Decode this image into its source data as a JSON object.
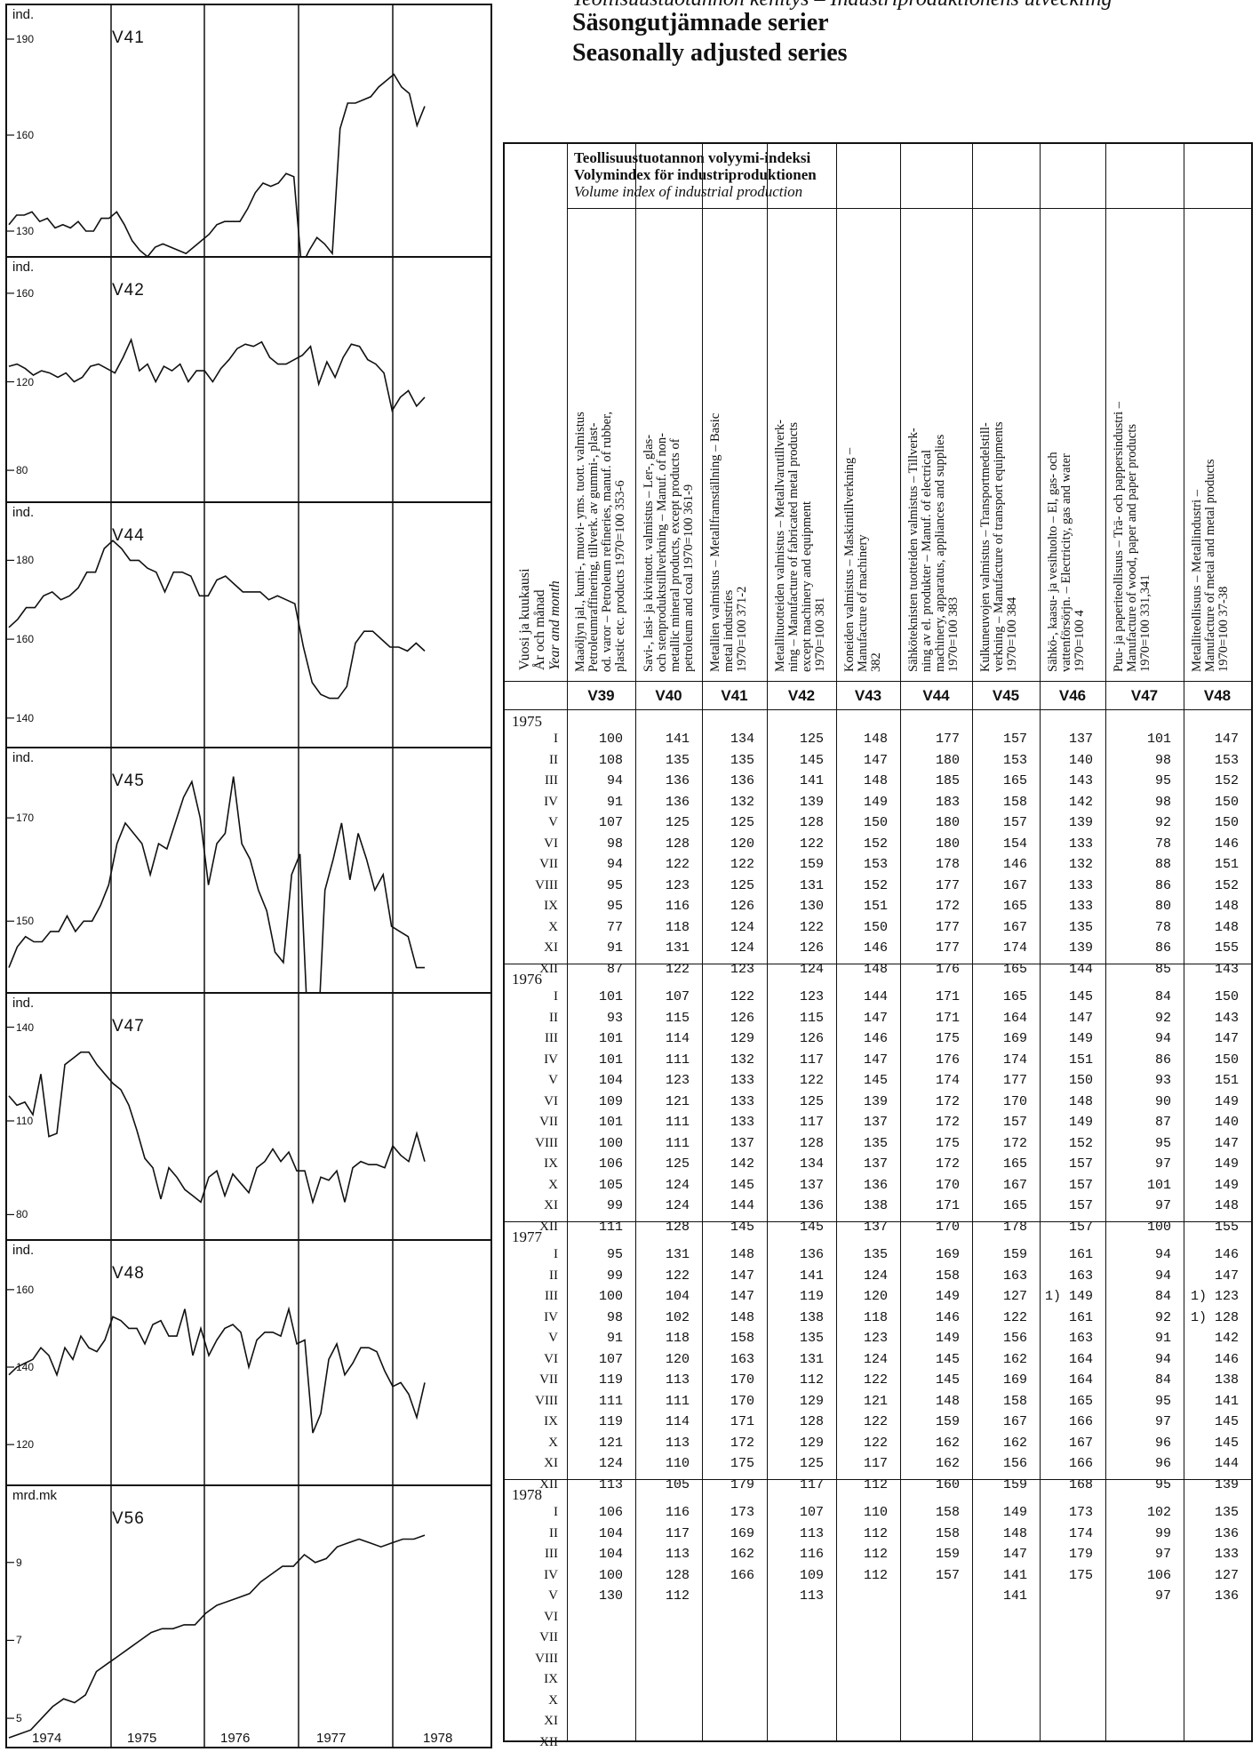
{
  "header": {
    "line1": "Teollisuustuotannon kehitys – Industriproduktionens utveckling",
    "line2": "Säsongutjämnade serier",
    "line3": "Seasonally adjusted series"
  },
  "charts": [
    {
      "id": "V41",
      "unit": "ind.",
      "ticks": [
        "190",
        "160",
        "130"
      ],
      "yrange": [
        125,
        195
      ],
      "values": [
        132,
        135,
        135,
        136,
        133,
        134,
        131,
        132,
        131,
        133,
        130,
        130,
        134,
        134,
        136,
        132,
        127,
        124,
        122,
        125,
        126,
        125,
        124,
        123,
        125,
        127,
        129,
        132,
        133,
        133,
        133,
        137,
        142,
        145,
        144,
        145,
        148,
        147,
        119,
        124,
        128,
        126,
        123,
        162,
        170,
        170,
        171,
        172,
        175,
        177,
        179,
        175,
        173,
        163,
        169
      ]
    },
    {
      "id": "V42",
      "unit": "ind.",
      "ticks": [
        "160",
        "120",
        "80"
      ],
      "yrange": [
        70,
        168
      ],
      "values": [
        127,
        128,
        126,
        123,
        125,
        124,
        122,
        124,
        120,
        122,
        127,
        128,
        126,
        124,
        131,
        139,
        125,
        128,
        120,
        127,
        125,
        128,
        120,
        125,
        125,
        120,
        126,
        130,
        135,
        137,
        136,
        138,
        131,
        128,
        128,
        130,
        132,
        136,
        119,
        129,
        122,
        131,
        137,
        136,
        130,
        128,
        124,
        107,
        113,
        116,
        109,
        113
      ]
    },
    {
      "id": "V44",
      "unit": "ind.",
      "ticks": [
        "180",
        "160",
        "140"
      ],
      "yrange": [
        135,
        190
      ],
      "values": [
        163,
        165,
        168,
        168,
        171,
        172,
        170,
        171,
        173,
        177,
        177,
        183,
        185,
        183,
        180,
        180,
        178,
        177,
        172,
        177,
        177,
        176,
        171,
        171,
        175,
        176,
        174,
        172,
        172,
        172,
        170,
        171,
        170,
        169,
        158,
        149,
        146,
        145,
        145,
        148,
        159,
        162,
        162,
        160,
        158,
        158,
        157,
        159,
        157
      ]
    },
    {
      "id": "V45",
      "unit": "ind.",
      "ticks": [
        "170",
        "150"
      ],
      "yrange": [
        138,
        180
      ],
      "values": [
        141,
        145,
        147,
        146,
        146,
        148,
        148,
        151,
        148,
        150,
        150,
        153,
        157,
        165,
        169,
        167,
        165,
        159,
        165,
        164,
        169,
        174,
        177,
        170,
        157,
        165,
        167,
        178,
        165,
        162,
        156,
        152,
        144,
        142,
        159,
        163,
        127,
        122,
        156,
        162,
        169,
        158,
        167,
        162,
        156,
        159,
        149,
        148,
        147,
        141,
        141
      ]
    },
    {
      "id": "V47",
      "unit": "ind.",
      "ticks": [
        "140",
        "110",
        "80"
      ],
      "yrange": [
        75,
        145
      ],
      "values": [
        118,
        115,
        116,
        112,
        125,
        105,
        106,
        128,
        130,
        132,
        132,
        128,
        125,
        122,
        120,
        115,
        107,
        98,
        95,
        85,
        95,
        92,
        88,
        86,
        84,
        92,
        94,
        86,
        93,
        90,
        87,
        95,
        97,
        101,
        97,
        100,
        94,
        94,
        84,
        92,
        91,
        94,
        84,
        95,
        97,
        96,
        96,
        95,
        102,
        99,
        97,
        106,
        97
      ]
    },
    {
      "id": "V48",
      "unit": "ind.",
      "ticks": [
        "160",
        "140",
        "120"
      ],
      "yrange": [
        112,
        168
      ],
      "values": [
        138,
        140,
        141,
        142,
        145,
        143,
        138,
        145,
        142,
        148,
        145,
        144,
        147,
        153,
        152,
        150,
        150,
        146,
        151,
        152,
        148,
        148,
        155,
        143,
        150,
        143,
        147,
        150,
        151,
        149,
        140,
        147,
        149,
        149,
        148,
        155,
        146,
        147,
        123,
        128,
        142,
        146,
        138,
        141,
        145,
        145,
        144,
        139,
        135,
        136,
        133,
        127,
        136
      ]
    },
    {
      "id": "V56",
      "unit": "mrd.mk",
      "ticks": [
        "9",
        "7",
        "5"
      ],
      "yrange": [
        4.5,
        10.5
      ],
      "values": [
        4.5,
        4.6,
        4.7,
        5.0,
        5.3,
        5.5,
        5.4,
        5.6,
        6.2,
        6.4,
        6.6,
        6.8,
        7.0,
        7.2,
        7.3,
        7.3,
        7.4,
        7.4,
        7.7,
        7.9,
        8.0,
        8.1,
        8.2,
        8.5,
        8.7,
        8.9,
        8.9,
        9.2,
        9.0,
        9.1,
        9.4,
        9.5,
        9.6,
        9.5,
        9.4,
        9.5,
        9.6,
        9.6,
        9.7
      ]
    }
  ],
  "years_axis": [
    "1974",
    "1975",
    "1976",
    "1977",
    "1978"
  ],
  "table": {
    "index_title": [
      "Teollisuustuotannon volyymi-indeksi",
      "Volymindex för industriproduktionen",
      "Volume index of industrial production"
    ],
    "row_head": [
      "Vuosi ja kuukausi",
      "År och månad",
      "Year and month"
    ],
    "columns": [
      {
        "code": "V39",
        "lines": [
          "Maaöljyn jal., kumi-, muovi- yms. tuott. valmistus",
          "Petroleumraffinering, tillverk. av gummi-, plast-",
          "od. varor – Petroleum refineries, manuf. of rubber,",
          "plastic etc. products 1970=100 353-6"
        ]
      },
      {
        "code": "V40",
        "lines": [
          "Savi-, lasi- ja kivituott. valmistus – Ler-, glas-",
          "och stenproduktstillverkning – Manuf. of non-",
          "metallic mineral products, except products of",
          "petroleum and coal 1970=100 361-9"
        ]
      },
      {
        "code": "V41",
        "lines": [
          "Metallien valmistus – Metallframställning – Basic",
          "metal industries",
          "1970=100 371-2"
        ]
      },
      {
        "code": "V42",
        "lines": [
          "Metallituotteiden valmistus – Metallvarutillverk-",
          "ning – Manufacture of fabricated metal products",
          "except machinery and equipment",
          "1970=100 381"
        ]
      },
      {
        "code": "V43",
        "lines": [
          "Koneiden valmistus – Maskintillverkning –",
          "Manufacture of machinery",
          "382"
        ]
      },
      {
        "code": "V44",
        "lines": [
          "Sähköteknisten tuotteiden valmistus – Tillverk-",
          "ning av el. produkter – Manuf. of electrical",
          "machinery, apparatus, appliances and supplies",
          "1970=100 383"
        ]
      },
      {
        "code": "V45",
        "lines": [
          "Kulkuneuvojen valmistus – Transportmedelstill-",
          "verkning – Manufacture of transport equipments",
          "1970=100 384"
        ]
      },
      {
        "code": "V46",
        "lines": [
          "Sähkö-, kaasu- ja vesihuolto – El, gas- och",
          "vattenförsörjn. – Electricity, gas and water",
          "1970=100 4"
        ]
      },
      {
        "code": "V47",
        "lines": [
          "Puu- ja paperiteollisuus – Trä- och pappersindustri –",
          "Manufacture of wood, paper and paper products",
          "1970=100 331,341"
        ]
      },
      {
        "code": "V48",
        "lines": [
          "Metalliteollisuus – Metallindustri –",
          "Manufacture of metal and metal products",
          "1970=100 37-38"
        ]
      }
    ],
    "months": [
      "I",
      "II",
      "III",
      "IV",
      "V",
      "VI",
      "VII",
      "VIII",
      "IX",
      "X",
      "XI",
      "XII"
    ],
    "years": [
      {
        "year": "1975",
        "rows": [
          [
            "100",
            "141",
            "134",
            "125",
            "148",
            "177",
            "157",
            "137",
            "101",
            "147"
          ],
          [
            "108",
            "135",
            "135",
            "145",
            "147",
            "180",
            "153",
            "140",
            "98",
            "153"
          ],
          [
            "94",
            "136",
            "136",
            "141",
            "148",
            "185",
            "165",
            "143",
            "95",
            "152"
          ],
          [
            "91",
            "136",
            "132",
            "139",
            "149",
            "183",
            "158",
            "142",
            "98",
            "150"
          ],
          [
            "107",
            "125",
            "125",
            "128",
            "150",
            "180",
            "157",
            "139",
            "92",
            "150"
          ],
          [
            "98",
            "128",
            "120",
            "122",
            "152",
            "180",
            "154",
            "133",
            "78",
            "146"
          ],
          [
            "94",
            "122",
            "122",
            "159",
            "153",
            "178",
            "146",
            "132",
            "88",
            "151"
          ],
          [
            "95",
            "123",
            "125",
            "131",
            "152",
            "177",
            "167",
            "133",
            "86",
            "152"
          ],
          [
            "95",
            "116",
            "126",
            "130",
            "151",
            "172",
            "165",
            "133",
            "80",
            "148"
          ],
          [
            "77",
            "118",
            "124",
            "122",
            "150",
            "177",
            "167",
            "135",
            "78",
            "148"
          ],
          [
            "91",
            "131",
            "124",
            "126",
            "146",
            "177",
            "174",
            "139",
            "86",
            "155"
          ],
          [
            "87",
            "122",
            "123",
            "124",
            "148",
            "176",
            "165",
            "144",
            "85",
            "143"
          ]
        ]
      },
      {
        "year": "1976",
        "rows": [
          [
            "101",
            "107",
            "122",
            "123",
            "144",
            "171",
            "165",
            "145",
            "84",
            "150"
          ],
          [
            "93",
            "115",
            "126",
            "115",
            "147",
            "171",
            "164",
            "147",
            "92",
            "143"
          ],
          [
            "101",
            "114",
            "129",
            "126",
            "146",
            "175",
            "169",
            "149",
            "94",
            "147"
          ],
          [
            "101",
            "111",
            "132",
            "117",
            "147",
            "176",
            "174",
            "151",
            "86",
            "150"
          ],
          [
            "104",
            "123",
            "133",
            "122",
            "145",
            "174",
            "177",
            "150",
            "93",
            "151"
          ],
          [
            "109",
            "121",
            "133",
            "125",
            "139",
            "172",
            "170",
            "148",
            "90",
            "149"
          ],
          [
            "101",
            "111",
            "133",
            "117",
            "137",
            "172",
            "157",
            "149",
            "87",
            "140"
          ],
          [
            "100",
            "111",
            "137",
            "128",
            "135",
            "175",
            "172",
            "152",
            "95",
            "147"
          ],
          [
            "106",
            "125",
            "142",
            "134",
            "137",
            "172",
            "165",
            "157",
            "97",
            "149"
          ],
          [
            "105",
            "124",
            "145",
            "137",
            "136",
            "170",
            "167",
            "157",
            "101",
            "149"
          ],
          [
            "99",
            "124",
            "144",
            "136",
            "138",
            "171",
            "165",
            "157",
            "97",
            "148"
          ],
          [
            "111",
            "128",
            "145",
            "145",
            "137",
            "170",
            "178",
            "157",
            "100",
            "155"
          ]
        ]
      },
      {
        "year": "1977",
        "rows": [
          [
            "95",
            "131",
            "148",
            "136",
            "135",
            "169",
            "159",
            "161",
            "94",
            "146"
          ],
          [
            "99",
            "122",
            "147",
            "141",
            "124",
            "158",
            "163",
            "163",
            "94",
            "147"
          ],
          [
            "100",
            "104",
            "147",
            "119",
            "120",
            "149",
            "127",
            "1) 149",
            "84",
            "1) 123"
          ],
          [
            "98",
            "102",
            "148",
            "138",
            "118",
            "146",
            "122",
            "161",
            "92",
            "1) 128"
          ],
          [
            "91",
            "118",
            "158",
            "135",
            "123",
            "149",
            "156",
            "163",
            "91",
            "142"
          ],
          [
            "107",
            "120",
            "163",
            "131",
            "124",
            "145",
            "162",
            "164",
            "94",
            "146"
          ],
          [
            "119",
            "113",
            "170",
            "112",
            "122",
            "145",
            "169",
            "164",
            "84",
            "138"
          ],
          [
            "111",
            "111",
            "170",
            "129",
            "121",
            "148",
            "158",
            "165",
            "95",
            "141"
          ],
          [
            "119",
            "114",
            "171",
            "128",
            "122",
            "159",
            "167",
            "166",
            "97",
            "145"
          ],
          [
            "121",
            "113",
            "172",
            "129",
            "122",
            "162",
            "162",
            "167",
            "96",
            "145"
          ],
          [
            "124",
            "110",
            "175",
            "125",
            "117",
            "162",
            "156",
            "166",
            "96",
            "144"
          ],
          [
            "113",
            "105",
            "179",
            "117",
            "112",
            "160",
            "159",
            "168",
            "95",
            "139"
          ]
        ]
      },
      {
        "year": "1978",
        "rows": [
          [
            "106",
            "116",
            "173",
            "107",
            "110",
            "158",
            "149",
            "173",
            "102",
            "135"
          ],
          [
            "104",
            "117",
            "169",
            "113",
            "112",
            "158",
            "148",
            "174",
            "99",
            "136"
          ],
          [
            "104",
            "113",
            "162",
            "116",
            "112",
            "159",
            "147",
            "179",
            "97",
            "133"
          ],
          [
            "100",
            "128",
            "166",
            "109",
            "112",
            "157",
            "141",
            "175",
            "106",
            "127"
          ],
          [
            "130",
            "112",
            "",
            "113",
            "",
            "",
            "141",
            "",
            "97",
            "136"
          ],
          [
            "",
            "",
            "",
            "",
            "",
            "",
            "",
            "",
            "",
            ""
          ],
          [
            "",
            "",
            "",
            "",
            "",
            "",
            "",
            "",
            "",
            ""
          ],
          [
            "",
            "",
            "",
            "",
            "",
            "",
            "",
            "",
            "",
            ""
          ],
          [
            "",
            "",
            "",
            "",
            "",
            "",
            "",
            "",
            "",
            ""
          ],
          [
            "",
            "",
            "",
            "",
            "",
            "",
            "",
            "",
            "",
            ""
          ],
          [
            "",
            "",
            "",
            "",
            "",
            "",
            "",
            "",
            "",
            ""
          ],
          [
            "",
            "",
            "",
            "",
            "",
            "",
            "",
            "",
            "",
            ""
          ]
        ]
      }
    ]
  }
}
